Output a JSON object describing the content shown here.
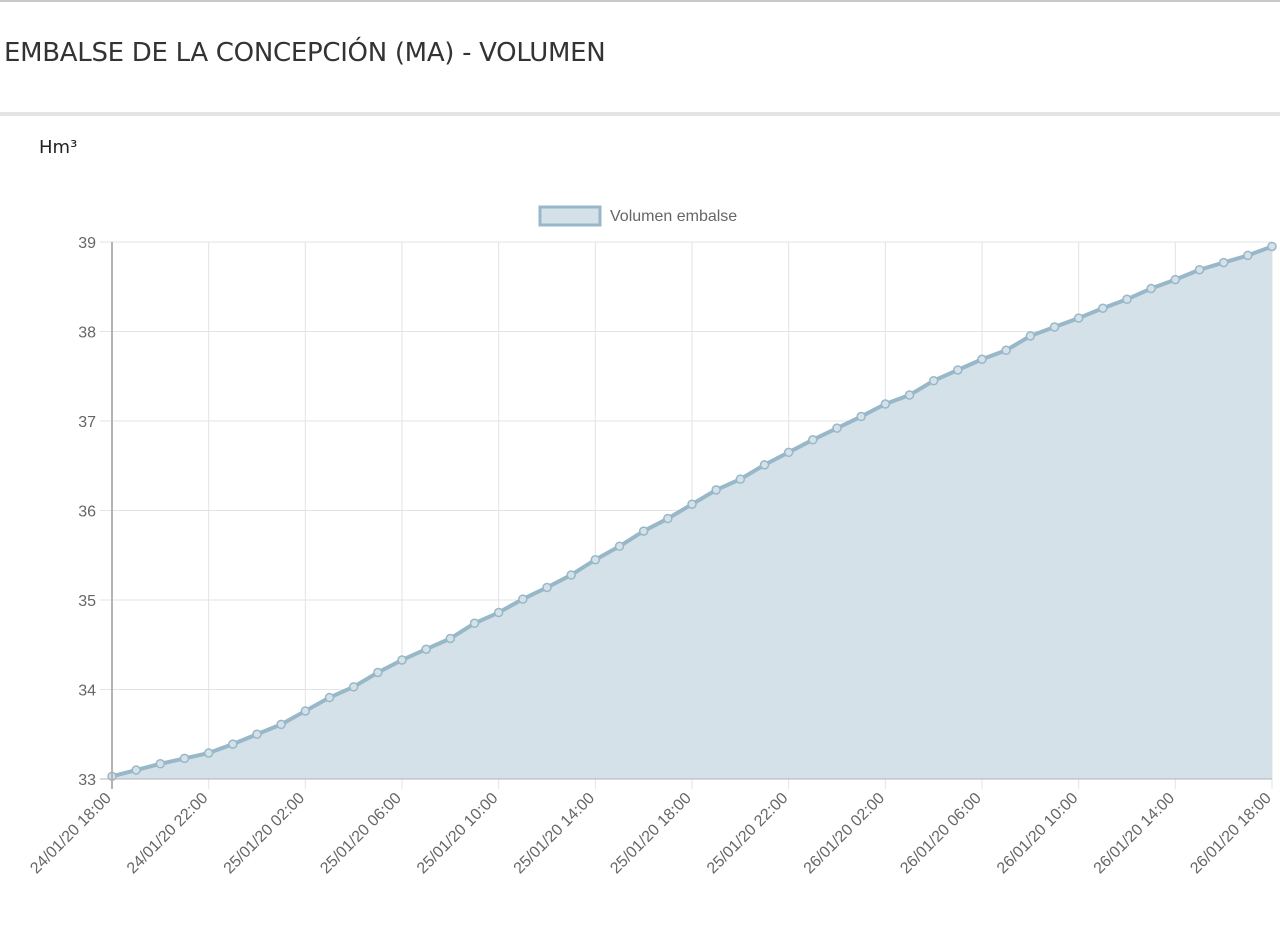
{
  "page": {
    "title": "EMBALSE DE LA CONCEPCIÓN (MA) - VOLUMEN",
    "unit": "Hm³"
  },
  "colors": {
    "series_line": "#98b7c8",
    "series_fill": "#d4e1e8",
    "grid": "#e3e3e3",
    "axis": "#b3b3b3",
    "text": "#666666"
  },
  "chart_data": {
    "type": "area",
    "title": "",
    "xlabel": "",
    "ylabel": "Hm³",
    "ylim": [
      33,
      39
    ],
    "y_ticks": [
      "33",
      "34",
      "35",
      "36",
      "37",
      "38",
      "39"
    ],
    "x_tick_labels": [
      "24/01/20 18:00",
      "24/01/20 22:00",
      "25/01/20 02:00",
      "25/01/20 06:00",
      "25/01/20 10:00",
      "25/01/20 14:00",
      "25/01/20 18:00",
      "25/01/20 22:00",
      "26/01/20 02:00",
      "26/01/20 06:00",
      "26/01/20 10:00",
      "26/01/20 14:00",
      "26/01/20 18:00"
    ],
    "grid": true,
    "legend_position": "top-center",
    "series": [
      {
        "name": "Volumen embalse",
        "x": [
          "24/01/20 18:00",
          "24/01/20 19:00",
          "24/01/20 20:00",
          "24/01/20 21:00",
          "24/01/20 22:00",
          "24/01/20 23:00",
          "25/01/20 00:00",
          "25/01/20 01:00",
          "25/01/20 02:00",
          "25/01/20 03:00",
          "25/01/20 04:00",
          "25/01/20 05:00",
          "25/01/20 06:00",
          "25/01/20 07:00",
          "25/01/20 08:00",
          "25/01/20 09:00",
          "25/01/20 10:00",
          "25/01/20 11:00",
          "25/01/20 12:00",
          "25/01/20 13:00",
          "25/01/20 14:00",
          "25/01/20 15:00",
          "25/01/20 16:00",
          "25/01/20 17:00",
          "25/01/20 18:00",
          "25/01/20 19:00",
          "25/01/20 20:00",
          "25/01/20 21:00",
          "25/01/20 22:00",
          "25/01/20 23:00",
          "26/01/20 00:00",
          "26/01/20 01:00",
          "26/01/20 02:00",
          "26/01/20 03:00",
          "26/01/20 04:00",
          "26/01/20 05:00",
          "26/01/20 06:00",
          "26/01/20 07:00",
          "26/01/20 08:00",
          "26/01/20 09:00",
          "26/01/20 10:00",
          "26/01/20 11:00",
          "26/01/20 12:00",
          "26/01/20 13:00",
          "26/01/20 14:00",
          "26/01/20 15:00",
          "26/01/20 16:00",
          "26/01/20 17:00",
          "26/01/20 18:00"
        ],
        "values": [
          33.03,
          33.1,
          33.17,
          33.23,
          33.29,
          33.39,
          33.5,
          33.61,
          33.76,
          33.91,
          34.03,
          34.19,
          34.33,
          34.45,
          34.57,
          34.74,
          34.86,
          35.01,
          35.14,
          35.28,
          35.45,
          35.6,
          35.77,
          35.91,
          36.07,
          36.23,
          36.35,
          36.51,
          36.65,
          36.79,
          36.92,
          37.05,
          37.19,
          37.29,
          37.45,
          37.57,
          37.69,
          37.79,
          37.95,
          38.05,
          38.15,
          38.26,
          38.36,
          38.48,
          38.58,
          38.69,
          38.77,
          38.85,
          38.95
        ]
      }
    ]
  }
}
